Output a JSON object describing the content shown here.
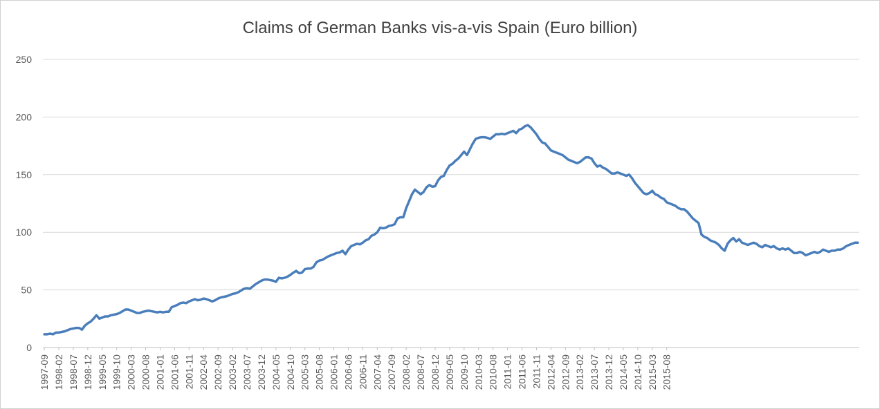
{
  "chart_data": {
    "type": "line",
    "title": "Claims of German Banks vis-a-vis Spain (Euro billion)",
    "xlabel": "",
    "ylabel": "",
    "ylim": [
      0,
      250
    ],
    "y_ticks": [
      0,
      50,
      100,
      150,
      200,
      250
    ],
    "x_start": "1997-09",
    "x_tick_labels": [
      "1997-09",
      "1998-02",
      "1998-07",
      "1998-12",
      "1999-05",
      "1999-10",
      "2000-03",
      "2000-08",
      "2001-01",
      "2001-06",
      "2001-11",
      "2002-04",
      "2002-09",
      "2003-02",
      "2003-07",
      "2003-12",
      "2004-05",
      "2004-10",
      "2005-03",
      "2005-08",
      "2006-01",
      "2006-06",
      "2006-11",
      "2007-04",
      "2007-09",
      "2008-02",
      "2008-07",
      "2008-12",
      "2009-05",
      "2009-10",
      "2010-03",
      "2010-08",
      "2011-01",
      "2011-06",
      "2011-11",
      "2012-04",
      "2012-09",
      "2013-02",
      "2013-07",
      "2013-12",
      "2014-05",
      "2014-10",
      "2015-03",
      "2015-08"
    ],
    "grid": true,
    "colors": {
      "line": "#4a7ebb",
      "grid": "#d9d9d9"
    },
    "series": [
      {
        "values": [
          11.5,
          11.5,
          12,
          11.5,
          13,
          13,
          13.5,
          14,
          15,
          16,
          16.5,
          17,
          17,
          15.5,
          19,
          21,
          22.5,
          25,
          28,
          25,
          26,
          27,
          27,
          28,
          28.5,
          29,
          30,
          31.5,
          33,
          33,
          32,
          31,
          30,
          30,
          31,
          31.5,
          32,
          31.5,
          31,
          30.5,
          31,
          30.5,
          31,
          31,
          35,
          36,
          37,
          38.5,
          39,
          38.5,
          40,
          41,
          42,
          41,
          41.5,
          42.5,
          42,
          41,
          40,
          41,
          42.5,
          43.5,
          44,
          44.5,
          45.5,
          46.5,
          47,
          48,
          49.5,
          51,
          51.5,
          51,
          53,
          55,
          56.5,
          58,
          59,
          59,
          58.5,
          58,
          57,
          60.5,
          60,
          60.5,
          61.5,
          63,
          65,
          66.5,
          64.5,
          65,
          68,
          68.5,
          68.5,
          70,
          74,
          75.5,
          76,
          77.5,
          79,
          80,
          81,
          82,
          82.5,
          84,
          81,
          85,
          88,
          89,
          90,
          89.5,
          91,
          93,
          94,
          97,
          98,
          100,
          104,
          103.5,
          104,
          105.5,
          106,
          107,
          112,
          113,
          113,
          121,
          127,
          133,
          137,
          135,
          133,
          135,
          139,
          141,
          139.5,
          140,
          145,
          148,
          149,
          154,
          158,
          159.5,
          162,
          164,
          167,
          170,
          167,
          172,
          177,
          181,
          182,
          182.5,
          182.5,
          182,
          181,
          183,
          185,
          185,
          185.5,
          185,
          186,
          187,
          188,
          186,
          189,
          190,
          192,
          193,
          191,
          188,
          185,
          181,
          178,
          177,
          174,
          171,
          170,
          169,
          168,
          167,
          165,
          163,
          162,
          161,
          160,
          161,
          163,
          165,
          165,
          164,
          160,
          157,
          158,
          156,
          155,
          153,
          151,
          151,
          152,
          151,
          150,
          149,
          150,
          147,
          143,
          140,
          137,
          134,
          133,
          134,
          136,
          133,
          132,
          130,
          129,
          126,
          125,
          124,
          123,
          121,
          120,
          120,
          118,
          115,
          112,
          110,
          108,
          98,
          96,
          95,
          93,
          92,
          91,
          89,
          86,
          84,
          90,
          93,
          95,
          92,
          94,
          91,
          90,
          89,
          90,
          91,
          90,
          88,
          87,
          89,
          88,
          87,
          88,
          86,
          85,
          86,
          85,
          86,
          84,
          82,
          82,
          83,
          82,
          80,
          81,
          82,
          83,
          82,
          83,
          85,
          84,
          83,
          84,
          84,
          85,
          85,
          86,
          88,
          89,
          90,
          91,
          91
        ]
      }
    ]
  }
}
